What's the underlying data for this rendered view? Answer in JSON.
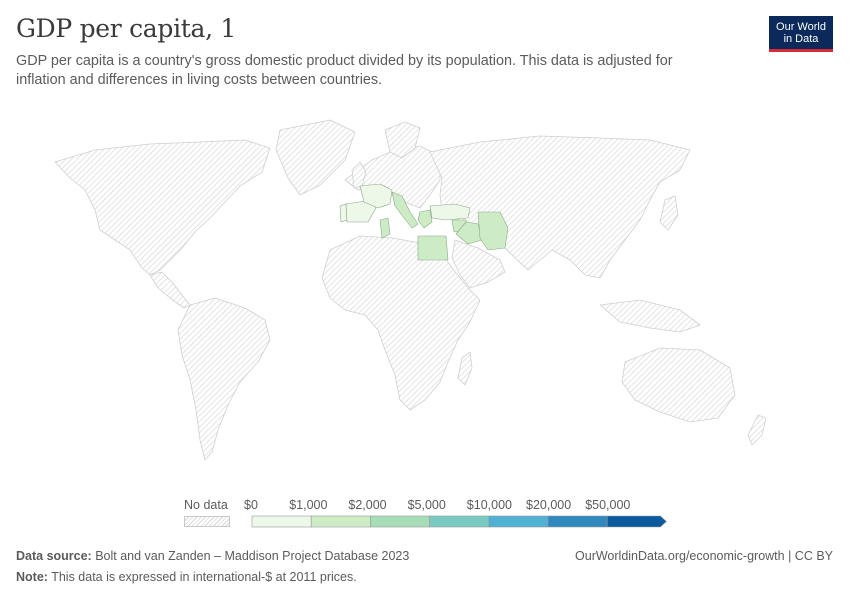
{
  "header": {
    "title": "GDP per capita, 1",
    "subtitle": "GDP per capita is a country's gross domestic product divided by its population. This data is adjusted for inflation and differences in living costs between countries.",
    "logo_line1": "Our World",
    "logo_line2": "in Data"
  },
  "legend": {
    "no_data_label": "No data",
    "bins": [
      "$0",
      "$1,000",
      "$2,000",
      "$5,000",
      "$10,000",
      "$20,000",
      "$50,000"
    ],
    "colors": [
      "#eef8e9",
      "#cdecc5",
      "#a6dcb6",
      "#79cbc1",
      "#4fb1d3",
      "#2f89bf",
      "#0b5a9d"
    ],
    "no_data_color": "#dcdcdc"
  },
  "map": {
    "countries_with_data": [
      {
        "name": "Italy",
        "color": "#cdecc5"
      },
      {
        "name": "Greece",
        "color": "#cdecc5"
      },
      {
        "name": "Turkey",
        "color": "#eef8e9"
      },
      {
        "name": "France",
        "color": "#eef8e9"
      },
      {
        "name": "Spain",
        "color": "#eef8e9"
      },
      {
        "name": "Portugal",
        "color": "#eef8e9"
      },
      {
        "name": "Tunisia",
        "color": "#cdecc5"
      },
      {
        "name": "Egypt",
        "color": "#cdecc5"
      },
      {
        "name": "Syria",
        "color": "#cdecc5"
      },
      {
        "name": "Iraq",
        "color": "#cdecc5"
      },
      {
        "name": "Iran",
        "color": "#cdecc5"
      }
    ]
  },
  "footer": {
    "source_label": "Data source:",
    "source_text": " Bolt and van Zanden – Maddison Project Database 2023",
    "note_label": "Note:",
    "note_text": " This data is expressed in international-$ at 2011 prices.",
    "link_text": "OurWorldinData.org/economic-growth",
    "license": " | CC BY"
  }
}
